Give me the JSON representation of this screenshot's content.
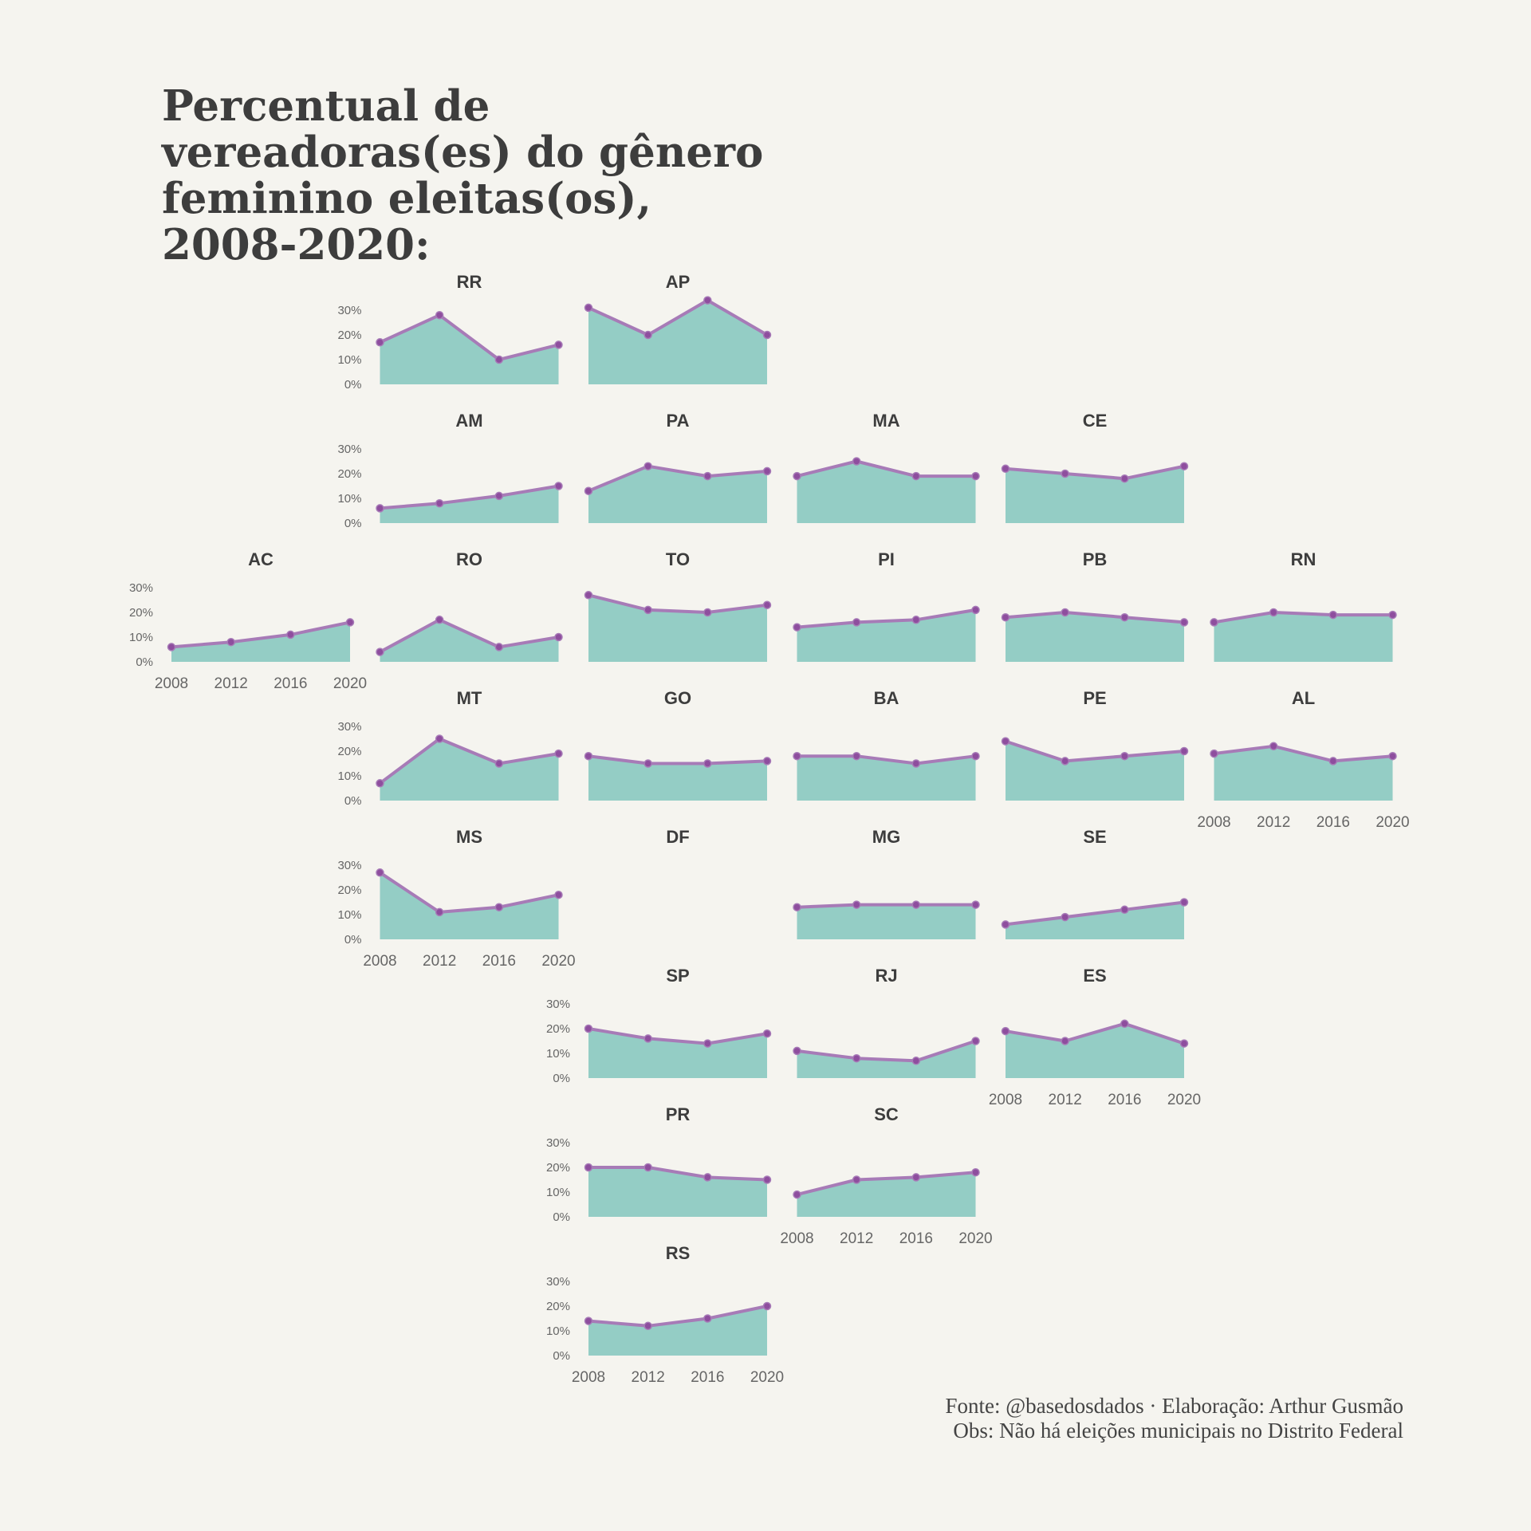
{
  "title_lines": [
    "Percentual de",
    "vereadoras(es) do gênero",
    "feminino eleitas(os),",
    "2008-2020:"
  ],
  "caption": {
    "source": "Fonte: @basedosdados · Elaboração: Arthur Gusmão",
    "note": "Obs: Não há eleições municipais no Distrito Federal"
  },
  "colors": {
    "area": "#94cdc5",
    "line": "#a77bb7",
    "point": "#8e4e9e",
    "text": "#3d3d3d",
    "axis_text": "#666666"
  },
  "chart_data": {
    "type": "area",
    "x": [
      2008,
      2012,
      2016,
      2020
    ],
    "ylim": [
      0,
      0.3
    ],
    "yticks": [
      "0%",
      "10%",
      "20%",
      "30%"
    ],
    "xticks": [
      "2008",
      "2012",
      "2016",
      "2020"
    ],
    "title": "",
    "xlabel": "",
    "ylabel": "",
    "grid": false,
    "panels": [
      {
        "label": "RR",
        "values": [
          0.17,
          0.28,
          0.1,
          0.16
        ]
      },
      {
        "label": "AP",
        "values": [
          0.31,
          0.2,
          0.34,
          0.2
        ]
      },
      {
        "label": "AM",
        "values": [
          0.06,
          0.08,
          0.11,
          0.15
        ]
      },
      {
        "label": "PA",
        "values": [
          0.13,
          0.23,
          0.19,
          0.21
        ]
      },
      {
        "label": "MA",
        "values": [
          0.19,
          0.25,
          0.19,
          0.19
        ]
      },
      {
        "label": "CE",
        "values": [
          0.22,
          0.2,
          0.18,
          0.23
        ]
      },
      {
        "label": "AC",
        "values": [
          0.06,
          0.08,
          0.11,
          0.16
        ]
      },
      {
        "label": "RO",
        "values": [
          0.04,
          0.17,
          0.06,
          0.1
        ]
      },
      {
        "label": "TO",
        "values": [
          0.27,
          0.21,
          0.2,
          0.23
        ]
      },
      {
        "label": "PI",
        "values": [
          0.14,
          0.16,
          0.17,
          0.21
        ]
      },
      {
        "label": "PB",
        "values": [
          0.18,
          0.2,
          0.18,
          0.16
        ]
      },
      {
        "label": "RN",
        "values": [
          0.16,
          0.2,
          0.19,
          0.19
        ]
      },
      {
        "label": "MT",
        "values": [
          0.07,
          0.25,
          0.15,
          0.19
        ]
      },
      {
        "label": "GO",
        "values": [
          0.18,
          0.15,
          0.15,
          0.16
        ]
      },
      {
        "label": "BA",
        "values": [
          0.18,
          0.18,
          0.15,
          0.18
        ]
      },
      {
        "label": "PE",
        "values": [
          0.24,
          0.16,
          0.18,
          0.2
        ]
      },
      {
        "label": "AL",
        "values": [
          0.19,
          0.22,
          0.16,
          0.18
        ]
      },
      {
        "label": "MS",
        "values": [
          0.27,
          0.11,
          0.13,
          0.18
        ]
      },
      {
        "label": "DF",
        "values": [
          null,
          null,
          null,
          null
        ]
      },
      {
        "label": "MG",
        "values": [
          0.13,
          0.14,
          0.14,
          0.14
        ]
      },
      {
        "label": "SE",
        "values": [
          0.06,
          0.09,
          0.12,
          0.15
        ]
      },
      {
        "label": "SP",
        "values": [
          0.2,
          0.16,
          0.14,
          0.18
        ]
      },
      {
        "label": "RJ",
        "values": [
          0.11,
          0.08,
          0.07,
          0.15
        ]
      },
      {
        "label": "ES",
        "values": [
          0.19,
          0.15,
          0.22,
          0.14
        ]
      },
      {
        "label": "PR",
        "values": [
          0.2,
          0.2,
          0.16,
          0.15
        ]
      },
      {
        "label": "SC",
        "values": [
          0.09,
          0.15,
          0.16,
          0.18
        ]
      },
      {
        "label": "RS",
        "values": [
          0.14,
          0.12,
          0.15,
          0.2
        ]
      }
    ]
  }
}
